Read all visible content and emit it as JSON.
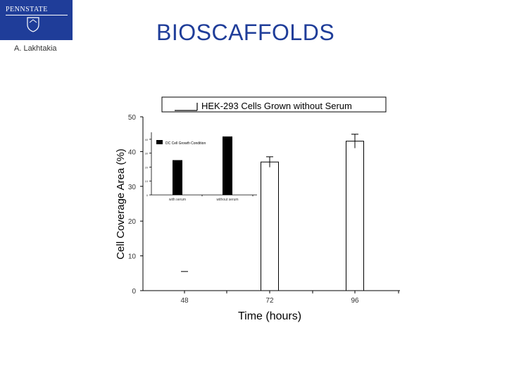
{
  "header": {
    "logo_text": "PENNSTATE",
    "author": "A. Lakhtakia",
    "title": "BIOSCAFFOLDS"
  },
  "colors": {
    "brand": "#1f3d99",
    "bar_fill": "#ffffff",
    "inset_bar": "#000000"
  },
  "chart_data": [
    {
      "type": "bar",
      "title": "HEK-293 Cells Grown without Serum",
      "xlabel": "Time (hours)",
      "ylabel": "Cell Coverage Area (%)",
      "categories": [
        "48",
        "72",
        "96"
      ],
      "values": [
        5.5,
        37,
        43
      ],
      "error": [
        0,
        1.5,
        2
      ],
      "ylim": [
        0,
        50
      ],
      "yticks": [
        "0",
        "10",
        "20",
        "30",
        "40",
        "50"
      ],
      "grid": false
    },
    {
      "type": "bar",
      "legend": "DC Cell Growth Condition",
      "categories": [
        "with serum",
        "without serum"
      ],
      "values": [
        25,
        42
      ],
      "ylim": [
        0,
        45
      ],
      "yticks": [
        "0",
        "10",
        "20",
        "30",
        "40"
      ]
    }
  ]
}
